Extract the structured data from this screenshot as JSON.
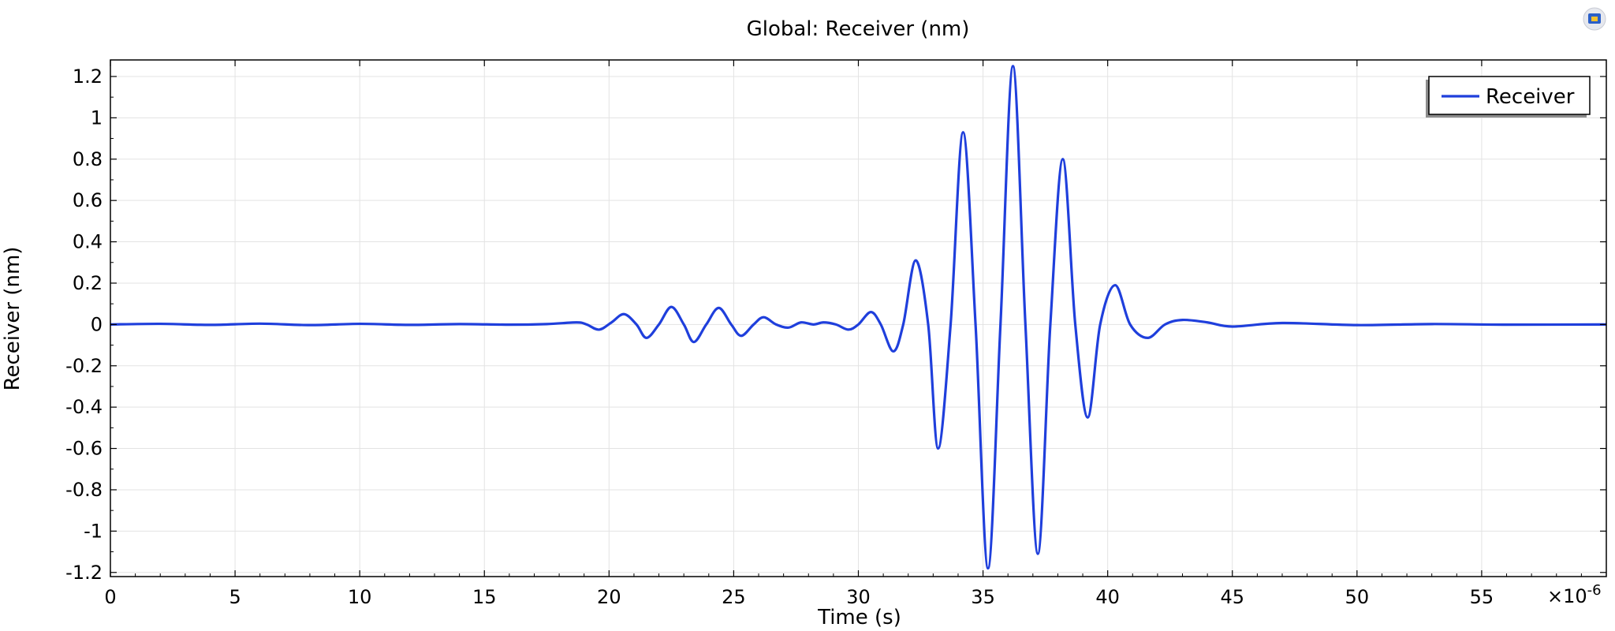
{
  "chart_data": {
    "type": "line",
    "title": "Global: Receiver (nm)",
    "xlabel": "Time (s)",
    "ylabel": "Receiver (nm)",
    "x_multiplier_label": "×10",
    "x_multiplier_exponent": "-6",
    "xlim": [
      0,
      60
    ],
    "ylim": [
      -1.22,
      1.28
    ],
    "x_ticks": [
      0,
      5,
      10,
      15,
      20,
      25,
      30,
      35,
      40,
      45,
      50,
      55
    ],
    "x_tick_labels": [
      "0",
      "5",
      "10",
      "15",
      "20",
      "25",
      "30",
      "35",
      "40",
      "45",
      "50",
      "55"
    ],
    "y_ticks": [
      1.2,
      1,
      0.8,
      0.6,
      0.4,
      0.2,
      0,
      -0.2,
      -0.4,
      -0.6,
      -0.8,
      -1,
      -1.2
    ],
    "y_tick_labels": [
      "1.2",
      "1",
      "0.8",
      "0.6",
      "0.4",
      "0.2",
      "0",
      "-0.2",
      "-0.4",
      "-0.6",
      "-0.8",
      "-1",
      "-1.2"
    ],
    "grid": true,
    "legend_position": "top-right",
    "series": [
      {
        "name": "Receiver",
        "color": "#1f3fdc",
        "x": [
          0,
          2,
          4,
          6,
          8,
          10,
          12,
          14,
          16,
          17.5,
          18.7,
          19.1,
          19.6,
          20.1,
          20.6,
          21.1,
          21.5,
          22.0,
          22.5,
          23.0,
          23.4,
          23.9,
          24.4,
          24.9,
          25.3,
          25.8,
          26.2,
          26.7,
          27.2,
          27.7,
          28.2,
          28.6,
          29.1,
          29.6,
          30.0,
          30.5,
          30.9,
          31.4,
          31.8,
          32.3,
          32.8,
          33.2,
          33.7,
          34.2,
          34.7,
          35.2,
          35.7,
          36.2,
          36.7,
          37.2,
          37.7,
          38.2,
          38.7,
          39.2,
          39.7,
          40.3,
          40.9,
          41.6,
          42.3,
          43.0,
          44.0,
          45.0,
          47.0,
          50.0,
          53.0,
          56.0,
          60.0
        ],
        "y": [
          0,
          0.003,
          -0.002,
          0.004,
          -0.003,
          0.003,
          -0.002,
          0.002,
          -0.001,
          0.002,
          0.01,
          0.0,
          -0.025,
          0.01,
          0.05,
          0.0,
          -0.065,
          0.0,
          0.085,
          0.0,
          -0.085,
          0.0,
          0.08,
          0.0,
          -0.055,
          0.0,
          0.035,
          0.0,
          -0.015,
          0.01,
          0.0,
          0.01,
          0.0,
          -0.025,
          0.0,
          0.06,
          0.0,
          -0.13,
          0.0,
          0.31,
          0.0,
          -0.6,
          0.0,
          0.93,
          0.0,
          -1.18,
          0.0,
          1.25,
          0.0,
          -1.11,
          0.0,
          0.8,
          0.0,
          -0.45,
          0.0,
          0.19,
          0.0,
          -0.065,
          0.0,
          0.022,
          0.01,
          -0.01,
          0.007,
          -0.003,
          0.002,
          -0.001,
          0.0
        ]
      }
    ]
  },
  "widgets": {
    "toolbar_icon": "camera-icon"
  }
}
